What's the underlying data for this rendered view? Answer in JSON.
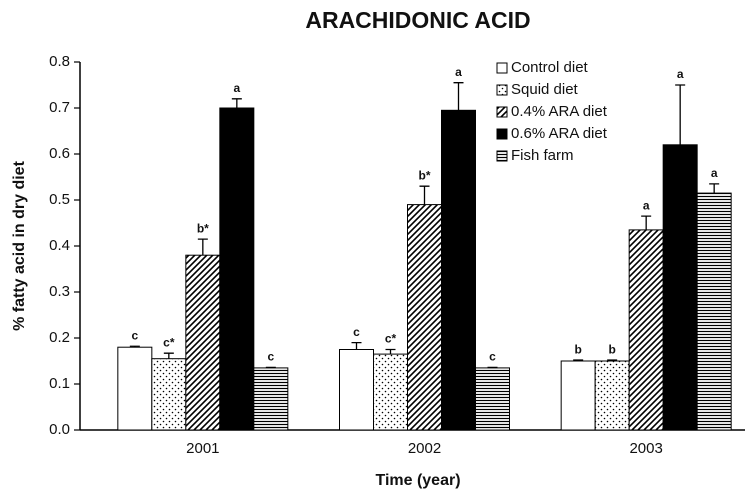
{
  "chart_data": {
    "type": "bar",
    "title": "ARACHIDONIC ACID",
    "xlabel": "Time (year)",
    "ylabel": "% fatty acid in dry diet",
    "categories": [
      "2001",
      "2002",
      "2003"
    ],
    "series": [
      {
        "name": "Control diet",
        "color": "#000000",
        "pattern": "none",
        "values": [
          0.18,
          0.175,
          0.15
        ],
        "errors": [
          0.002,
          0.015,
          0.002
        ],
        "letters": [
          "c",
          "c",
          "b"
        ]
      },
      {
        "name": "Squid diet",
        "color": "#000000",
        "pattern": "dots",
        "values": [
          0.155,
          0.165,
          0.15
        ],
        "errors": [
          0.012,
          0.01,
          0.002
        ],
        "letters": [
          "c*",
          "c*",
          "b"
        ]
      },
      {
        "name": "0.4% ARA diet",
        "color": "#000000",
        "pattern": "diagonal",
        "values": [
          0.38,
          0.49,
          0.435
        ],
        "errors": [
          0.035,
          0.04,
          0.03
        ],
        "letters": [
          "b*",
          "b*",
          "a"
        ]
      },
      {
        "name": "0.6% ARA diet",
        "color": "#000000",
        "pattern": "solid",
        "values": [
          0.7,
          0.695,
          0.62
        ],
        "errors": [
          0.02,
          0.06,
          0.13
        ],
        "letters": [
          "a",
          "a",
          "a"
        ]
      },
      {
        "name": "Fish farm",
        "color": "#000000",
        "pattern": "horizontal",
        "values": [
          0.135,
          0.135,
          0.515
        ],
        "errors": [
          0.001,
          0.001,
          0.02
        ],
        "letters": [
          "c",
          "c",
          "a"
        ]
      }
    ],
    "ylim": [
      0,
      0.8
    ],
    "yticks": [
      {
        "value": 0,
        "label": "0.0"
      },
      0.1,
      0.2,
      0.3,
      0.4,
      0.5,
      0.6,
      0.7,
      0.8
    ],
    "legend": "upper right"
  }
}
